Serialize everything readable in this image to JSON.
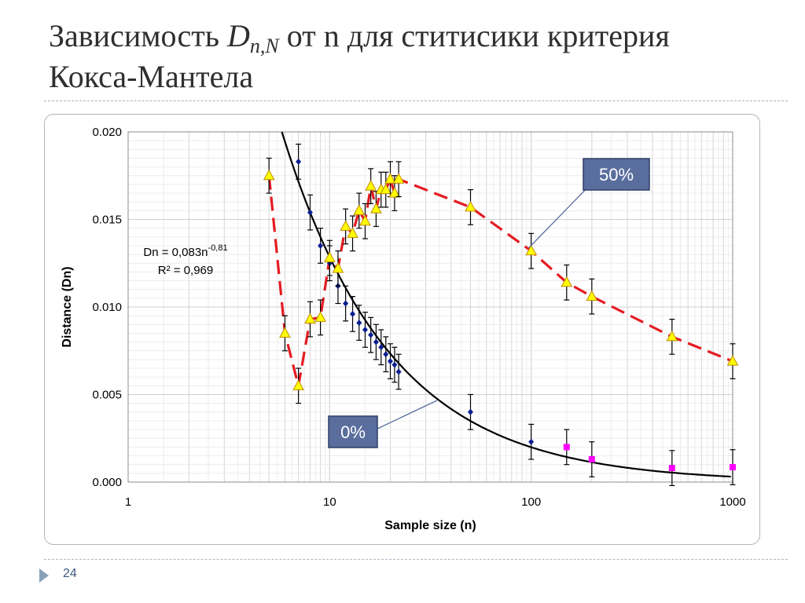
{
  "slide": {
    "title_prefix": "Зависимость ",
    "title_symbol": "D",
    "title_subscript": "n,N",
    "title_rest": " от n для ститисики критерия",
    "title_line2": "Кокса-Мантела",
    "page_number": "24"
  },
  "colors": {
    "series_50": "#e51c23",
    "marker_50_fill": "#ffff00",
    "marker_50_edge": "#c08a00",
    "series_0_points": "#0a1f8f",
    "series_0_extra": "#ff00ff",
    "fit_curve": "#000000",
    "callout_bg": "#5a6e9e"
  },
  "equation": {
    "line1_base": "Dn = 0,083n",
    "line1_exp": "-0,81",
    "line2": "R² = 0,969"
  },
  "callouts": {
    "pct50": "50%",
    "pct0": "0%"
  },
  "chart_data": {
    "type": "scatter",
    "xlabel": "Sample size (n)",
    "ylabel": "Distance (Dn)",
    "x_scale": "log",
    "xlim": [
      1,
      1000
    ],
    "ylim": [
      0,
      0.02
    ],
    "x_ticks": [
      1,
      10,
      100,
      1000
    ],
    "x_tick_labels": [
      "1",
      "10",
      "100",
      "1000"
    ],
    "y_ticks": [
      0,
      0.005,
      0.01,
      0.015,
      0.02
    ],
    "y_tick_labels": [
      "0.000",
      "0.005",
      "0.010",
      "0.015",
      "0.020"
    ],
    "grid": true,
    "series": [
      {
        "label": "50%",
        "style": "dashed line with triangle markers and error bars",
        "x": [
          5,
          6,
          7,
          8,
          9,
          10,
          11,
          12,
          13,
          14,
          15,
          16,
          17,
          18,
          19,
          20,
          21,
          22,
          50,
          100,
          150,
          200,
          500,
          1000
        ],
        "y": [
          0.0175,
          0.0085,
          0.0055,
          0.0093,
          0.0094,
          0.0128,
          0.0122,
          0.0146,
          0.0142,
          0.0155,
          0.0149,
          0.0169,
          0.0156,
          0.0167,
          0.0167,
          0.0173,
          0.0165,
          0.0173,
          0.0157,
          0.0132,
          0.0114,
          0.0106,
          0.0083,
          0.0069
        ],
        "error": 0.001
      },
      {
        "label": "0%",
        "style": "diamond markers with error bars",
        "x": [
          7,
          8,
          9,
          10,
          11,
          12,
          13,
          14,
          15,
          16,
          17,
          18,
          19,
          20,
          21,
          22,
          50,
          100
        ],
        "y": [
          0.0183,
          0.0154,
          0.0135,
          0.0125,
          0.0112,
          0.0102,
          0.0096,
          0.0091,
          0.0087,
          0.0084,
          0.008,
          0.0077,
          0.0073,
          0.0069,
          0.0067,
          0.0063,
          0.004,
          0.0023
        ],
        "error": 0.001,
        "extra_points": {
          "x": [
            150,
            200,
            500,
            1000
          ],
          "y": [
            0.002,
            0.0013,
            0.0008,
            0.00085
          ]
        }
      }
    ],
    "fit": {
      "equation": "Dn = 0,083n^-0,81",
      "r2": "0,969",
      "a": 0.083,
      "b": -0.81
    }
  }
}
